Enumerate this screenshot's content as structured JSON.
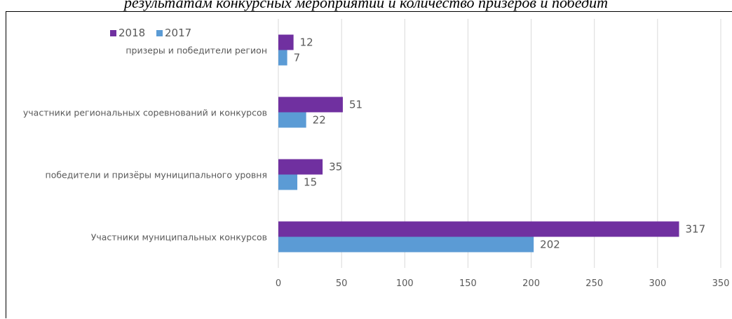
{
  "caption": "результатам конкурсных мероприятий и количество призеров и победит",
  "chart_data": {
    "type": "bar",
    "orientation": "horizontal",
    "categories": [
      "Участники муниципальных конкурсов",
      "победители и призёры муниципального уровня",
      "участники региональных соревнований и конкурсов",
      "призеры и победители регион"
    ],
    "series": [
      {
        "name": "2018",
        "values": [
          317,
          35,
          51,
          12
        ],
        "color": "#7030a0"
      },
      {
        "name": "2017",
        "values": [
          202,
          15,
          22,
          7
        ],
        "color": "#5b9bd5"
      }
    ],
    "xticks": [
      "0",
      "50",
      "100",
      "150",
      "200",
      "250",
      "300",
      "350"
    ],
    "xlim": [
      0,
      350
    ],
    "grid": true,
    "legend": "top-left",
    "data_labels": true
  }
}
